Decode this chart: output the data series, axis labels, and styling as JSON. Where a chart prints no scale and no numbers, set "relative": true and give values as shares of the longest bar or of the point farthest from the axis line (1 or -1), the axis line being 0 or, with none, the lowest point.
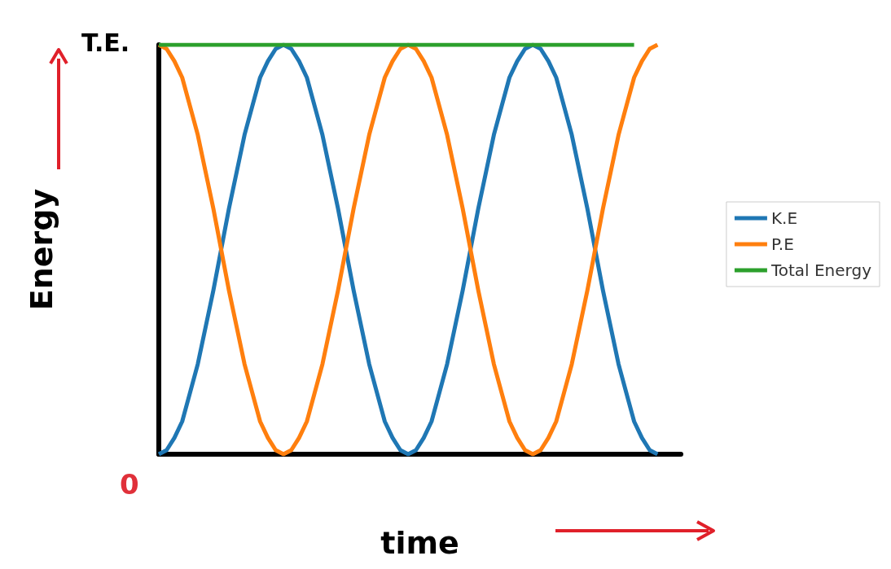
{
  "chart_data": {
    "type": "line",
    "relative": true,
    "xlabel": "time",
    "ylabel": "Energy",
    "categories": [
      null,
      null,
      null,
      null,
      null,
      null,
      null,
      null,
      null,
      null,
      null,
      null,
      null,
      null,
      null,
      null,
      null,
      null,
      null,
      null,
      null,
      null,
      null,
      null,
      null,
      null,
      null,
      null,
      null,
      null,
      null,
      null,
      null,
      null,
      null,
      null,
      null,
      null,
      null,
      null,
      null,
      null,
      null,
      null,
      null,
      null,
      null,
      null,
      null,
      null,
      null,
      null,
      null,
      null,
      null,
      null,
      null,
      null,
      null,
      null,
      null,
      null,
      null,
      null,
      null,
      null,
      null,
      null
    ],
    "series": [
      {
        "name": "K.E",
        "color": "#1f77b4",
        "values": [
          0,
          0.01,
          0.04,
          0.08,
          0.15,
          0.22,
          0.31,
          0.4,
          0.5,
          0.6,
          0.69,
          0.78,
          0.85,
          0.92,
          0.96,
          0.99,
          1,
          0.99,
          0.96,
          0.92,
          0.85,
          0.78,
          0.69,
          0.6,
          0.5,
          0.4,
          0.31,
          0.22,
          0.15,
          0.08,
          0.04,
          0.01,
          0,
          0.01,
          0.04,
          0.08,
          0.15,
          0.22,
          0.31,
          0.4,
          0.5,
          0.6,
          0.69,
          0.78,
          0.85,
          0.92,
          0.96,
          0.99,
          1,
          0.99,
          0.96,
          0.92,
          0.85,
          0.78,
          0.69,
          0.6,
          0.5,
          0.4,
          0.31,
          0.22,
          0.15,
          0.08,
          0.04,
          0.01,
          0,
          null,
          null,
          null
        ]
      },
      {
        "name": "P.E",
        "color": "#ff7f0e",
        "values": [
          1,
          0.99,
          0.96,
          0.92,
          0.85,
          0.78,
          0.69,
          0.6,
          0.5,
          0.4,
          0.31,
          0.22,
          0.15,
          0.08,
          0.04,
          0.01,
          0,
          0.01,
          0.04,
          0.08,
          0.15,
          0.22,
          0.31,
          0.4,
          0.5,
          0.6,
          0.69,
          0.78,
          0.85,
          0.92,
          0.96,
          0.99,
          1,
          0.99,
          0.96,
          0.92,
          0.85,
          0.78,
          0.69,
          0.6,
          0.5,
          0.4,
          0.31,
          0.22,
          0.15,
          0.08,
          0.04,
          0.01,
          0,
          0.01,
          0.04,
          0.08,
          0.15,
          0.22,
          0.31,
          0.4,
          0.5,
          0.6,
          0.69,
          0.78,
          0.85,
          0.92,
          0.96,
          0.99,
          1,
          null,
          null,
          null
        ]
      },
      {
        "name": "Total Energy",
        "color": "#2ca02c",
        "values": [
          1,
          1,
          1,
          1,
          1,
          1,
          1,
          1,
          1,
          1,
          1,
          1,
          1,
          1,
          1,
          1,
          1,
          1,
          1,
          1,
          1,
          1,
          1,
          1,
          1,
          1,
          1,
          1,
          1,
          1,
          1,
          1,
          1,
          1,
          1,
          1,
          1,
          1,
          1,
          1,
          1,
          1,
          1,
          1,
          1,
          1,
          1,
          1,
          1,
          1,
          1,
          1,
          1,
          1,
          1,
          1,
          1,
          1,
          1,
          1,
          1,
          1,
          null,
          null,
          null,
          null,
          null,
          null
        ]
      }
    ],
    "annotations": [
      "T.E.",
      "0"
    ],
    "legend": "right",
    "grid": false,
    "marker": "none",
    "line_style": "solid"
  }
}
